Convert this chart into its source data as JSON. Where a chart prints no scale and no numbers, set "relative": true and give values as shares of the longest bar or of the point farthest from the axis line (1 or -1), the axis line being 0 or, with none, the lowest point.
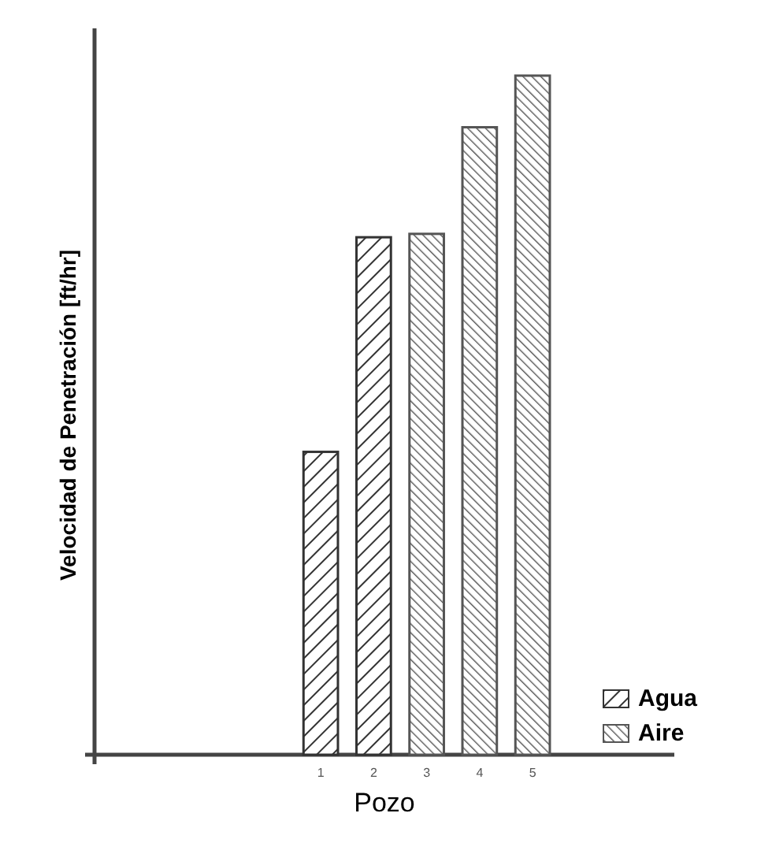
{
  "chart_data": {
    "type": "bar",
    "relative": true,
    "xlabel": "Pozo",
    "ylabel": "Velocidad de Penetración [ft/hr]",
    "categories": [
      null,
      null,
      null,
      "1",
      "2",
      "3",
      "4",
      "5",
      null,
      null
    ],
    "legend": "right",
    "series": [
      {
        "name": "Agua",
        "color": "#333333",
        "values": [
          null,
          null,
          null,
          0.446,
          0.762,
          null,
          null,
          null,
          null,
          null
        ]
      },
      {
        "name": "Aire",
        "color": "#555555",
        "values": [
          null,
          null,
          null,
          null,
          null,
          0.767,
          0.924,
          1,
          null,
          null
        ]
      }
    ]
  }
}
